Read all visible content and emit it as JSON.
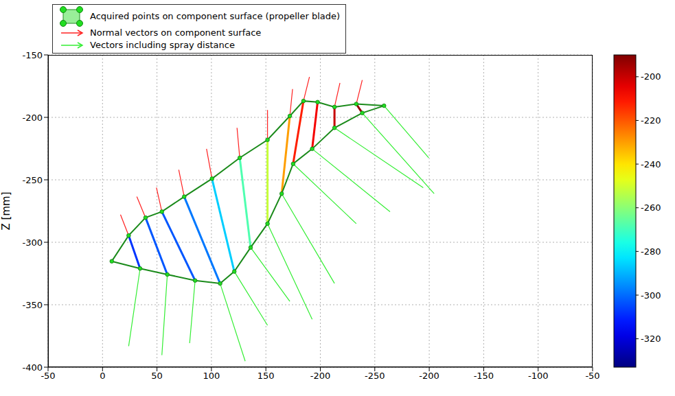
{
  "chart_data": {
    "type": "scatter",
    "y_label": "Z [mm]",
    "categories": [
      "-50",
      "0",
      "50",
      "100",
      "150",
      "-200",
      "-250",
      "-200",
      "-150",
      "-100",
      "-50"
    ],
    "ylim": [
      -400,
      -150
    ],
    "yticks": [
      -400,
      -350,
      -300,
      -250,
      -200,
      -150
    ],
    "grid": true,
    "legend": "top",
    "series": [
      {
        "name": "Acquired points on component surface (propeller blade)",
        "type": "scatter",
        "marker": "circle",
        "color": "#22dd22",
        "top": {
          "x": [
            1.17,
            1.48,
            1.79,
            2.09,
            2.5,
            3.01,
            3.52,
            4.03,
            4.44,
            4.69,
            4.95,
            5.26,
            5.66,
            6.17
          ],
          "values": [
            -315.2,
            -294.6,
            -280.3,
            -275.5,
            -263.5,
            -249.1,
            -232.4,
            -218.0,
            -198.9,
            -186.9,
            -187.8,
            -191.7,
            -189.3,
            -190.7
          ]
        },
        "bottom": {
          "x": [
            1.17,
            1.69,
            2.19,
            2.7,
            3.16,
            3.42,
            3.72,
            4.03,
            4.29,
            4.5,
            4.85,
            5.26,
            5.77,
            6.17
          ],
          "values": [
            -315.2,
            -321.0,
            -325.8,
            -330.6,
            -333.0,
            -323.4,
            -304.2,
            -285.1,
            -261.1,
            -237.2,
            -225.2,
            -208.4,
            -196.5,
            -190.7
          ]
        }
      },
      {
        "name": "Normal vectors on component surface",
        "type": "vector",
        "color": "#ff2020",
        "x": [
          1.48,
          1.79,
          2.09,
          2.5,
          3.01,
          3.52,
          4.03,
          4.44,
          4.69,
          5.26,
          5.66
        ],
        "values": [
          -294.6,
          -280.3,
          -275.5,
          -263.5,
          -249.1,
          -232.4,
          -218.0,
          -198.9,
          -186.9,
          -191.7,
          -189.3
        ],
        "x_end": [
          1.33,
          1.63,
          1.99,
          2.4,
          2.91,
          3.47,
          4.03,
          4.49,
          4.8,
          5.36,
          5.77
        ],
        "values_end": [
          -277.9,
          -263.5,
          -256.3,
          -242.0,
          -225.2,
          -208.4,
          -194.1,
          -177.3,
          -167.7,
          -172.5,
          -170.1
        ]
      },
      {
        "name": "Vectors including spray distance",
        "type": "vector",
        "color": "#33ee33",
        "x": [
          1.69,
          2.19,
          2.7,
          3.16,
          3.42,
          3.72,
          4.03,
          4.29,
          4.5,
          4.85,
          5.26,
          5.77,
          6.17
        ],
        "values": [
          -321.0,
          -325.8,
          -330.6,
          -333.0,
          -323.4,
          -304.2,
          -285.1,
          -261.1,
          -237.2,
          -225.2,
          -208.4,
          -196.5,
          -190.7
        ],
        "x_end": [
          1.48,
          2.09,
          2.6,
          3.62,
          4.03,
          4.44,
          4.85,
          5.26,
          5.66,
          6.28,
          6.89,
          7.09,
          6.99
        ],
        "values_end": [
          -383.2,
          -390.4,
          -380.8,
          -395.2,
          -366.5,
          -347.3,
          -361.7,
          -332.9,
          -285.1,
          -275.5,
          -256.3,
          -261.1,
          -232.4
        ]
      }
    ],
    "colorbar": {
      "range": [
        -333,
        -190
      ],
      "ticks": [
        -320,
        -300,
        -280,
        -260,
        -240,
        -220,
        -200
      ]
    }
  }
}
